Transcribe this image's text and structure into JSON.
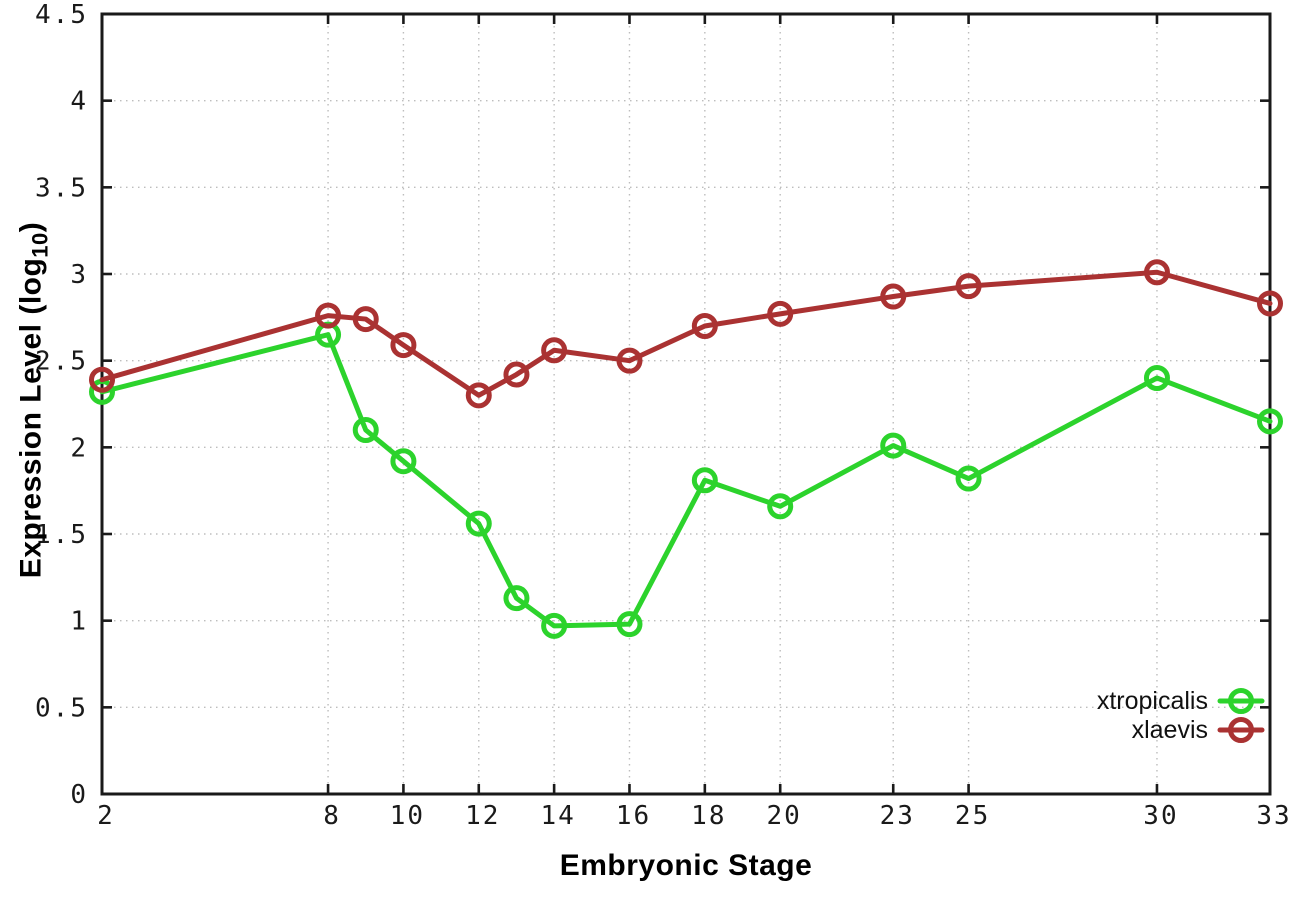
{
  "labels": {
    "x": "Embryonic Stage",
    "y_main": "Expression Level (log",
    "y_sub": "10",
    "y_close": ")"
  },
  "chart_data": {
    "type": "line",
    "title": "",
    "xlabel": "Embryonic Stage",
    "ylabel": "Expression Level (log10)",
    "x": [
      2,
      8,
      9,
      10,
      12,
      13,
      14,
      16,
      18,
      20,
      23,
      25,
      30,
      33
    ],
    "series": [
      {
        "name": "xtropicalis",
        "color": "#2cd32c",
        "marker": "open-circle",
        "values": [
          2.32,
          2.65,
          2.1,
          1.92,
          1.56,
          1.13,
          0.97,
          0.98,
          1.81,
          1.66,
          2.01,
          1.82,
          2.4,
          2.15
        ]
      },
      {
        "name": "xlaevis",
        "color": "#aa3232",
        "marker": "open-circle",
        "values": [
          2.39,
          2.76,
          2.74,
          2.59,
          2.3,
          2.42,
          2.56,
          2.5,
          2.7,
          2.77,
          2.87,
          2.93,
          3.01,
          2.83
        ]
      }
    ],
    "xlim": [
      2,
      33
    ],
    "ylim": [
      0,
      4.5
    ],
    "x_ticks": [
      2,
      8,
      10,
      12,
      14,
      16,
      18,
      20,
      23,
      25,
      30,
      33
    ],
    "y_ticks": [
      0,
      0.5,
      1,
      1.5,
      2,
      2.5,
      3,
      3.5,
      4,
      4.5
    ],
    "y_tick_labels": [
      "0",
      "0.5",
      "1",
      "1.5",
      "2",
      "2.5",
      "3",
      "3.5",
      "4",
      "4.5"
    ],
    "grid": true,
    "legend_position": "inside-bottom-right",
    "axis_color": "#1a1a1a",
    "grid_color": "#bdbdbd",
    "background": "#ffffff"
  }
}
